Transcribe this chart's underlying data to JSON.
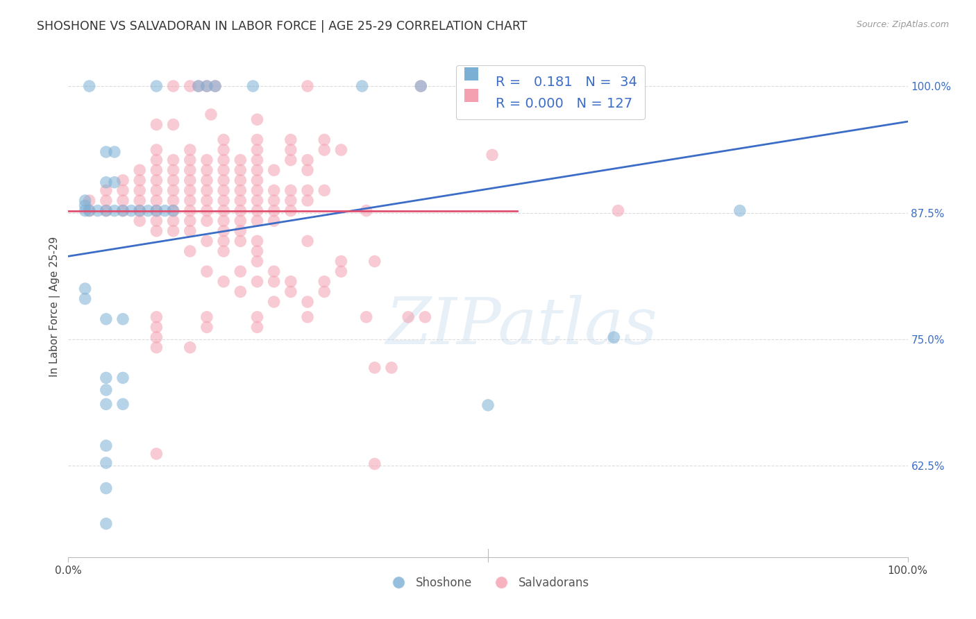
{
  "title": "SHOSHONE VS SALVADORAN IN LABOR FORCE | AGE 25-29 CORRELATION CHART",
  "source_text": "Source: ZipAtlas.com",
  "ylabel": "In Labor Force | Age 25-29",
  "ytick_labels": [
    "62.5%",
    "75.0%",
    "87.5%",
    "100.0%"
  ],
  "ytick_values": [
    0.625,
    0.75,
    0.875,
    1.0
  ],
  "xlim": [
    0.0,
    1.0
  ],
  "ylim": [
    0.535,
    1.03
  ],
  "watermark": "ZIPatlas",
  "legend_blue_R": "0.181",
  "legend_blue_N": "34",
  "legend_pink_R": "0.000",
  "legend_pink_N": "127",
  "blue_color": "#7BAFD4",
  "pink_color": "#F4A0B0",
  "line_blue_color": "#3B6DC7",
  "line_pink_color": "#E05070",
  "blue_line_x": [
    0.0,
    1.0
  ],
  "blue_line_y": [
    0.832,
    0.965
  ],
  "pink_line_x": [
    0.0,
    0.535
  ],
  "pink_line_y": [
    0.877,
    0.877
  ],
  "blue_x": [
    0.025,
    0.105,
    0.155,
    0.165,
    0.175,
    0.22,
    0.35,
    0.42,
    0.045,
    0.055,
    0.055,
    0.045,
    0.02,
    0.02,
    0.02,
    0.025,
    0.035,
    0.045,
    0.055,
    0.065,
    0.075,
    0.085,
    0.095,
    0.105,
    0.115,
    0.125,
    0.02,
    0.02,
    0.045,
    0.065,
    0.045,
    0.065,
    0.045,
    0.045,
    0.065,
    0.045,
    0.045,
    0.045,
    0.045,
    0.5,
    0.8,
    0.65
  ],
  "blue_y": [
    1.0,
    1.0,
    1.0,
    1.0,
    1.0,
    1.0,
    1.0,
    1.0,
    0.935,
    0.935,
    0.905,
    0.905,
    0.887,
    0.882,
    0.877,
    0.877,
    0.877,
    0.877,
    0.877,
    0.877,
    0.877,
    0.877,
    0.877,
    0.877,
    0.877,
    0.877,
    0.8,
    0.79,
    0.77,
    0.77,
    0.712,
    0.712,
    0.7,
    0.686,
    0.686,
    0.645,
    0.628,
    0.603,
    0.568,
    0.685,
    0.877,
    0.752
  ],
  "pink_x": [
    0.125,
    0.145,
    0.155,
    0.165,
    0.175,
    0.285,
    0.42,
    0.17,
    0.225,
    0.105,
    0.125,
    0.185,
    0.225,
    0.265,
    0.305,
    0.105,
    0.145,
    0.185,
    0.225,
    0.265,
    0.305,
    0.325,
    0.105,
    0.125,
    0.145,
    0.165,
    0.185,
    0.205,
    0.225,
    0.265,
    0.285,
    0.085,
    0.105,
    0.125,
    0.145,
    0.165,
    0.185,
    0.205,
    0.225,
    0.245,
    0.285,
    0.065,
    0.085,
    0.105,
    0.125,
    0.145,
    0.165,
    0.185,
    0.205,
    0.225,
    0.045,
    0.065,
    0.085,
    0.105,
    0.125,
    0.145,
    0.165,
    0.185,
    0.205,
    0.225,
    0.245,
    0.265,
    0.285,
    0.305,
    0.025,
    0.045,
    0.065,
    0.085,
    0.105,
    0.125,
    0.145,
    0.165,
    0.185,
    0.205,
    0.225,
    0.245,
    0.265,
    0.285,
    0.025,
    0.045,
    0.065,
    0.085,
    0.105,
    0.125,
    0.145,
    0.165,
    0.185,
    0.205,
    0.225,
    0.245,
    0.265,
    0.085,
    0.105,
    0.125,
    0.145,
    0.165,
    0.185,
    0.205,
    0.225,
    0.245,
    0.105,
    0.125,
    0.145,
    0.185,
    0.205,
    0.165,
    0.185,
    0.205,
    0.225,
    0.285,
    0.145,
    0.185,
    0.225,
    0.225,
    0.325,
    0.365,
    0.165,
    0.205,
    0.245,
    0.325,
    0.185,
    0.225,
    0.245,
    0.265,
    0.305,
    0.205,
    0.265,
    0.305,
    0.245,
    0.285,
    0.105,
    0.165,
    0.225,
    0.285,
    0.355,
    0.405,
    0.425,
    0.105,
    0.165,
    0.225,
    0.105,
    0.105,
    0.145,
    0.365,
    0.385,
    0.105,
    0.365,
    0.655,
    0.355,
    0.505
  ],
  "pink_y": [
    1.0,
    1.0,
    1.0,
    1.0,
    1.0,
    1.0,
    1.0,
    0.972,
    0.967,
    0.962,
    0.962,
    0.947,
    0.947,
    0.947,
    0.947,
    0.937,
    0.937,
    0.937,
    0.937,
    0.937,
    0.937,
    0.937,
    0.927,
    0.927,
    0.927,
    0.927,
    0.927,
    0.927,
    0.927,
    0.927,
    0.927,
    0.917,
    0.917,
    0.917,
    0.917,
    0.917,
    0.917,
    0.917,
    0.917,
    0.917,
    0.917,
    0.907,
    0.907,
    0.907,
    0.907,
    0.907,
    0.907,
    0.907,
    0.907,
    0.907,
    0.897,
    0.897,
    0.897,
    0.897,
    0.897,
    0.897,
    0.897,
    0.897,
    0.897,
    0.897,
    0.897,
    0.897,
    0.897,
    0.897,
    0.887,
    0.887,
    0.887,
    0.887,
    0.887,
    0.887,
    0.887,
    0.887,
    0.887,
    0.887,
    0.887,
    0.887,
    0.887,
    0.887,
    0.877,
    0.877,
    0.877,
    0.877,
    0.877,
    0.877,
    0.877,
    0.877,
    0.877,
    0.877,
    0.877,
    0.877,
    0.877,
    0.867,
    0.867,
    0.867,
    0.867,
    0.867,
    0.867,
    0.867,
    0.867,
    0.867,
    0.857,
    0.857,
    0.857,
    0.857,
    0.857,
    0.847,
    0.847,
    0.847,
    0.847,
    0.847,
    0.837,
    0.837,
    0.837,
    0.827,
    0.827,
    0.827,
    0.817,
    0.817,
    0.817,
    0.817,
    0.807,
    0.807,
    0.807,
    0.807,
    0.807,
    0.797,
    0.797,
    0.797,
    0.787,
    0.787,
    0.772,
    0.772,
    0.772,
    0.772,
    0.772,
    0.772,
    0.772,
    0.762,
    0.762,
    0.762,
    0.752,
    0.742,
    0.742,
    0.722,
    0.722,
    0.637,
    0.627,
    0.877,
    0.877,
    0.932
  ],
  "background_color": "#ffffff",
  "grid_color": "#cccccc"
}
